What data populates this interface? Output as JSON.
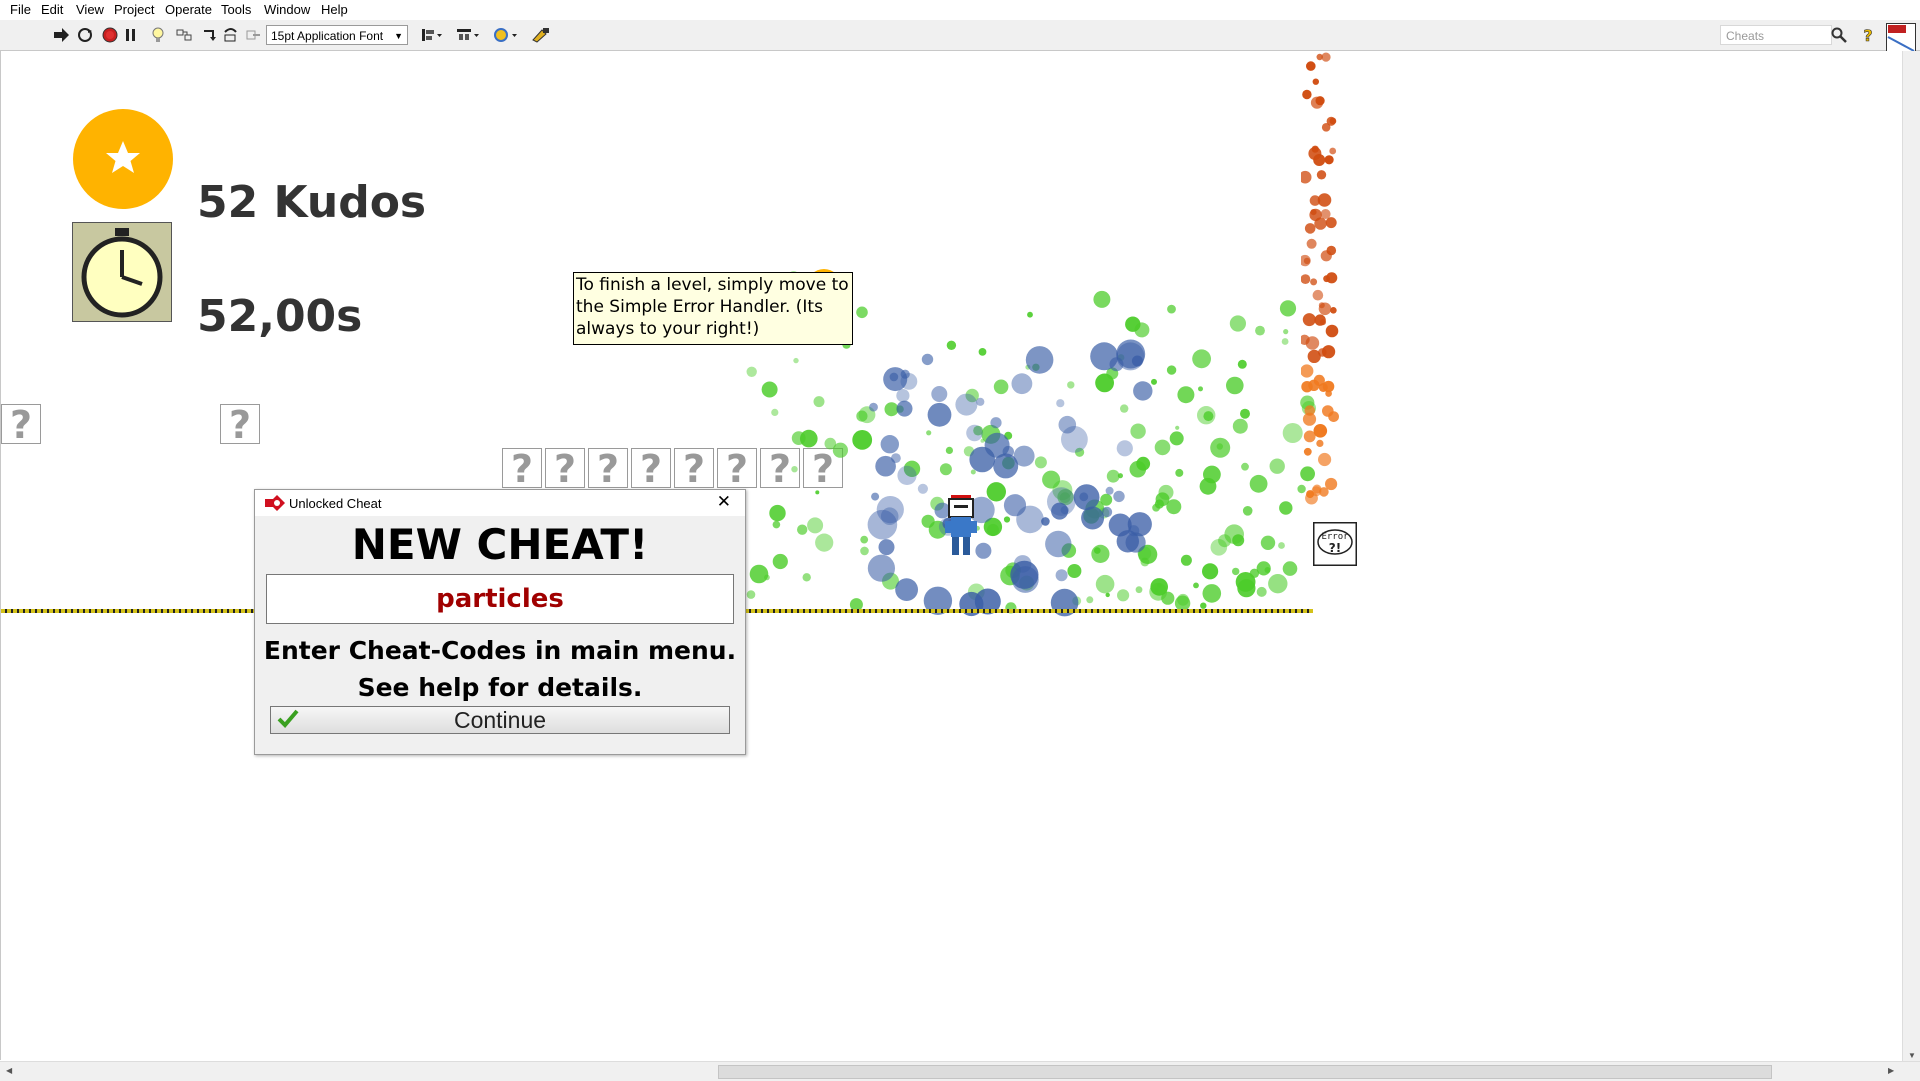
{
  "menu": {
    "items": [
      "File",
      "Edit",
      "View",
      "Project",
      "Operate",
      "Tools",
      "Window",
      "Help"
    ]
  },
  "toolbar": {
    "font_select": "15pt Application Font",
    "search_placeholder": "Cheats",
    "search_icon": "magnifier-icon",
    "help_icon": "question-icon"
  },
  "hud": {
    "kudos": "52 Kudos",
    "time": "52,00s"
  },
  "level": {
    "question_mark": "?",
    "tooltip": "To finish a level, simply move to the Simple Error Handler. (Its always to your right!)",
    "goal_text": "Error"
  },
  "dialog": {
    "title": "Unlocked Cheat",
    "heading": "NEW CHEAT!",
    "cheat_code": "particles",
    "message_line1": "Enter Cheat-Codes in main menu.",
    "message_line2": "See help for details.",
    "continue_label": "Continue"
  },
  "colors": {
    "accent_gold": "#ffb300",
    "cheat_code": "#a00000",
    "particle_green": "#4ccc2a",
    "particle_blue": "#3a5ea6",
    "particle_orange": "#d04c10"
  }
}
